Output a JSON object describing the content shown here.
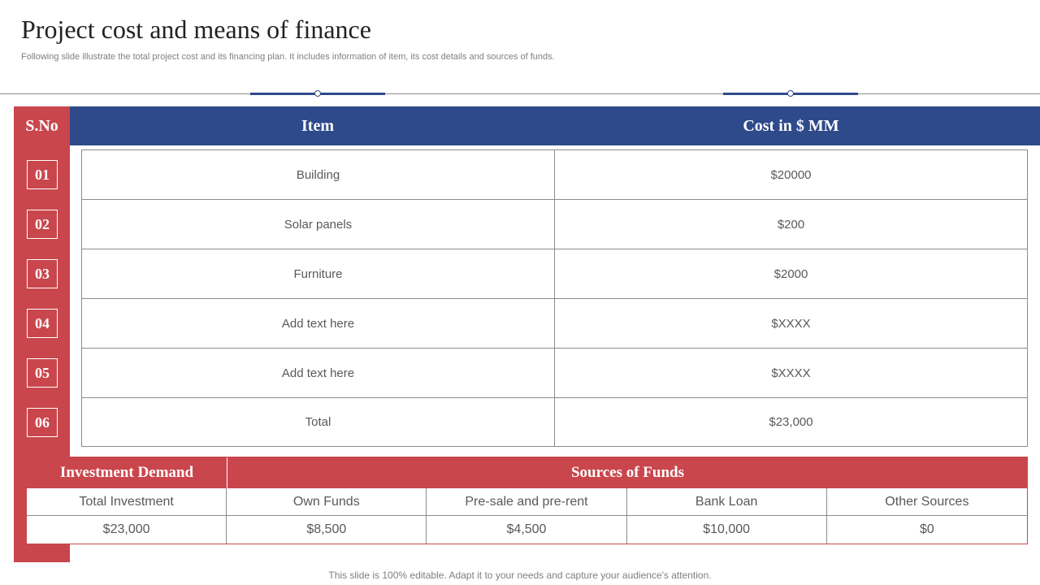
{
  "page": {
    "title": "Project cost and means of finance",
    "subtitle": "Following slide illustrate the total project cost and its financing plan. It includes information of item, its cost details and sources of funds.",
    "footer": "This slide is 100% editable. Adapt it to your needs and capture your audience's attention."
  },
  "cost_table": {
    "headers": {
      "sno": "S.No",
      "item": "Item",
      "cost": "Cost in $ MM"
    },
    "rows": [
      {
        "no": "01",
        "item": "Building",
        "cost": "$20000"
      },
      {
        "no": "02",
        "item": "Solar panels",
        "cost": "$200"
      },
      {
        "no": "03",
        "item": "Furniture",
        "cost": "$2000"
      },
      {
        "no": "04",
        "item": "Add text here",
        "cost": "$XXXX"
      },
      {
        "no": "05",
        "item": "Add text here",
        "cost": "$XXXX"
      },
      {
        "no": "06",
        "item": "Total",
        "cost": "$23,000"
      }
    ]
  },
  "funds_table": {
    "headers": {
      "demand": "Investment Demand",
      "sources": "Sources of Funds"
    },
    "labels": [
      "Total Investment",
      "Own Funds",
      "Pre-sale and pre-rent",
      "Bank Loan",
      "Other Sources"
    ],
    "values": [
      "$23,000",
      "$8,500",
      "$4,500",
      "$10,000",
      "$0"
    ]
  },
  "colors": {
    "blue": "#2e4a8b",
    "red": "#c9464c"
  }
}
